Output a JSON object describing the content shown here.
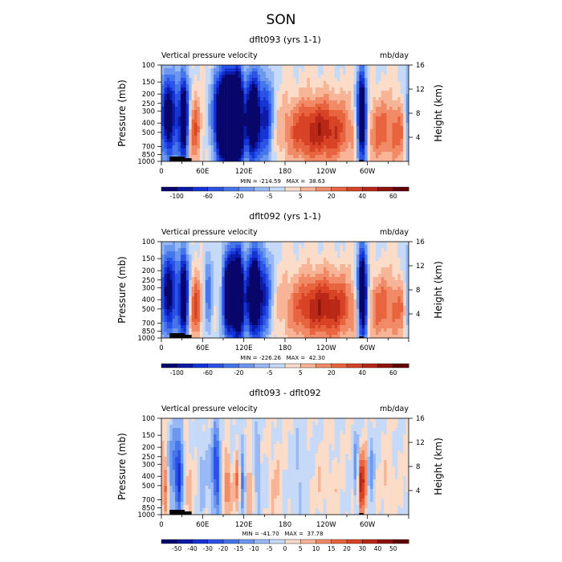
{
  "suptitle": "SON",
  "chart_data": [
    {
      "type": "heatmap",
      "title": "dflt093 (yrs 1-1)",
      "left_label": "Vertical pressure velocity",
      "right_label": "mb/day",
      "ylabel": "Pressure (mb)",
      "y2label": "Height (km)",
      "x_ticks": [
        "0",
        "60E",
        "120E",
        "180",
        "120W",
        "60W"
      ],
      "y_ticks": [
        "100",
        "150",
        "200",
        "250",
        "300",
        "400",
        "500",
        "700",
        "850",
        "1000"
      ],
      "y2_ticks": [
        "4",
        "8",
        "12",
        "16"
      ],
      "stats": "MIN = -214.59   MAX =  38.63",
      "colorbar_labels": [
        "-100",
        "-60",
        "-20",
        "-5",
        "5",
        "20",
        "40",
        "60"
      ],
      "colorbar_count": 16,
      "vmax": 70,
      "features": [
        {
          "lon": 10,
          "w": 10,
          "a": -80
        },
        {
          "lon": 33,
          "w": 5,
          "a": -90
        },
        {
          "lon": 48,
          "w": 7,
          "a": 35
        },
        {
          "lon": 90,
          "w": 10,
          "a": -110
        },
        {
          "lon": 100,
          "w": 7,
          "a": -90
        },
        {
          "lon": 112,
          "w": 6,
          "a": -130
        },
        {
          "lon": 133,
          "w": 7,
          "a": -100
        },
        {
          "lon": 152,
          "w": 8,
          "a": -55
        },
        {
          "lon": 210,
          "w": 28,
          "a": 35
        },
        {
          "lon": 250,
          "w": 25,
          "a": 32
        },
        {
          "lon": 292,
          "w": 5,
          "a": -110
        },
        {
          "lon": 320,
          "w": 16,
          "a": 30
        },
        {
          "lon": 350,
          "w": 10,
          "a": 28
        }
      ]
    },
    {
      "type": "heatmap",
      "title": "dflt092 (yrs 1-1)",
      "left_label": "Vertical pressure velocity",
      "right_label": "mb/day",
      "ylabel": "Pressure (mb)",
      "y2label": "Height (km)",
      "x_ticks": [
        "0",
        "60E",
        "120E",
        "180",
        "120W",
        "60W"
      ],
      "y_ticks": [
        "100",
        "150",
        "200",
        "250",
        "300",
        "400",
        "500",
        "700",
        "850",
        "1000"
      ],
      "y2_ticks": [
        "4",
        "8",
        "12",
        "16"
      ],
      "stats": "MIN = -226.26   MAX =  42.30",
      "colorbar_labels": [
        "-100",
        "-60",
        "-20",
        "-5",
        "5",
        "20",
        "40",
        "60"
      ],
      "colorbar_count": 16,
      "vmax": 70,
      "features": [
        {
          "lon": 10,
          "w": 10,
          "a": -75
        },
        {
          "lon": 33,
          "w": 5,
          "a": -85
        },
        {
          "lon": 50,
          "w": 7,
          "a": 38
        },
        {
          "lon": 68,
          "w": 5,
          "a": -30
        },
        {
          "lon": 98,
          "w": 6,
          "a": -100
        },
        {
          "lon": 112,
          "w": 6,
          "a": -120
        },
        {
          "lon": 134,
          "w": 7,
          "a": -100
        },
        {
          "lon": 150,
          "w": 8,
          "a": -50
        },
        {
          "lon": 215,
          "w": 28,
          "a": 36
        },
        {
          "lon": 255,
          "w": 25,
          "a": 33
        },
        {
          "lon": 293,
          "w": 5,
          "a": -115
        },
        {
          "lon": 322,
          "w": 16,
          "a": 30
        },
        {
          "lon": 352,
          "w": 10,
          "a": 26
        }
      ]
    },
    {
      "type": "heatmap",
      "title": "dflt093 - dflt092",
      "left_label": "Vertical pressure velocity",
      "right_label": "mb/day",
      "ylabel": "Pressure (mb)",
      "y2label": "Height (km)",
      "x_ticks": [
        "0",
        "60E",
        "120E",
        "180",
        "120W",
        "60W"
      ],
      "y_ticks": [
        "100",
        "150",
        "200",
        "250",
        "300",
        "400",
        "500",
        "700",
        "850",
        "1000"
      ],
      "y2_ticks": [
        "4",
        "8",
        "12",
        "16"
      ],
      "stats": "MIN = -41.70   MAX =  37.78",
      "colorbar_labels": [
        "-50",
        "-40",
        "-30",
        "-20",
        "-15",
        "-10",
        "-5",
        "0",
        "5",
        "10",
        "15",
        "20",
        "30",
        "40",
        "50"
      ],
      "colorbar_count": 16,
      "vmax": 55,
      "features": [
        {
          "lon": 6,
          "w": 4,
          "a": 25
        },
        {
          "lon": 15,
          "w": 5,
          "a": -22
        },
        {
          "lon": 26,
          "w": 4,
          "a": -38
        },
        {
          "lon": 40,
          "w": 5,
          "a": 10
        },
        {
          "lon": 60,
          "w": 6,
          "a": -10
        },
        {
          "lon": 80,
          "w": 5,
          "a": -35
        },
        {
          "lon": 95,
          "w": 4,
          "a": 22
        },
        {
          "lon": 110,
          "w": 3,
          "a": 18
        },
        {
          "lon": 118,
          "w": 3,
          "a": -20
        },
        {
          "lon": 128,
          "w": 3,
          "a": 15
        },
        {
          "lon": 140,
          "w": 4,
          "a": -15
        },
        {
          "lon": 165,
          "w": 6,
          "a": 8
        },
        {
          "lon": 200,
          "w": 8,
          "a": -8
        },
        {
          "lon": 240,
          "w": 10,
          "a": 6
        },
        {
          "lon": 284,
          "w": 3,
          "a": -18
        },
        {
          "lon": 290,
          "w": 3,
          "a": 32
        },
        {
          "lon": 296,
          "w": 3,
          "a": 28
        },
        {
          "lon": 305,
          "w": 4,
          "a": -14
        },
        {
          "lon": 330,
          "w": 6,
          "a": 8
        }
      ]
    }
  ]
}
